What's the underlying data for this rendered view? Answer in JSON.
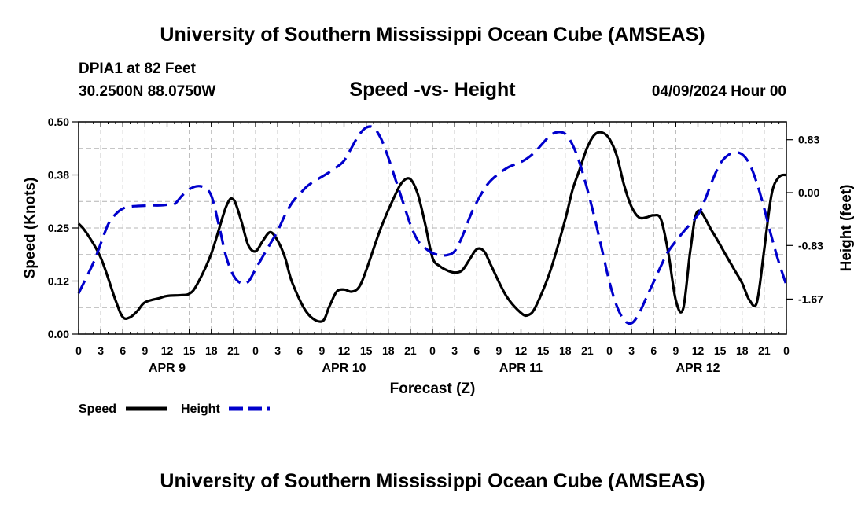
{
  "header": {
    "title": "University of Southern Mississippi Ocean Cube (AMSEAS)",
    "station": "DPIA1 at 82 Feet",
    "coords": "30.2500N  88.0750W",
    "subtitle": "Speed -vs- Height",
    "datestamp": "04/09/2024 Hour 00"
  },
  "footer": {
    "title": "University of Southern Mississippi Ocean Cube (AMSEAS)"
  },
  "colors": {
    "speed": "#000000",
    "height": "#0000cc",
    "grid": "#b4b4b4"
  },
  "chart_data": {
    "type": "line",
    "xlabel": "Forecast (Z)",
    "ylabel_left": "Speed (Knots)",
    "ylabel_right": "Height (feet)",
    "x_unit": "hours since 04/09/2024 00Z",
    "xlim": [
      0,
      96
    ],
    "ylim_left": [
      0,
      0.5
    ],
    "ylim_right": [
      -2.22,
      1.11
    ],
    "yticks_left": [
      {
        "value": 0.0,
        "label": "0.00"
      },
      {
        "value": 0.125,
        "label": "0.12"
      },
      {
        "value": 0.25,
        "label": "0.25"
      },
      {
        "value": 0.375,
        "label": "0.38"
      },
      {
        "value": 0.5,
        "label": "0.50"
      }
    ],
    "yticks_right": [
      {
        "value": -1.67,
        "label": "-1.67"
      },
      {
        "value": -0.83,
        "label": "-0.83"
      },
      {
        "value": 0.0,
        "label": "0.00"
      },
      {
        "value": 0.83,
        "label": "0.83"
      }
    ],
    "xticks": [
      {
        "x": 0,
        "label": "0"
      },
      {
        "x": 3,
        "label": "3"
      },
      {
        "x": 6,
        "label": "6"
      },
      {
        "x": 9,
        "label": "9"
      },
      {
        "x": 12,
        "label": "12"
      },
      {
        "x": 15,
        "label": "15"
      },
      {
        "x": 18,
        "label": "18"
      },
      {
        "x": 21,
        "label": "21"
      },
      {
        "x": 24,
        "label": "0"
      },
      {
        "x": 27,
        "label": "3"
      },
      {
        "x": 30,
        "label": "6"
      },
      {
        "x": 33,
        "label": "9"
      },
      {
        "x": 36,
        "label": "12"
      },
      {
        "x": 39,
        "label": "15"
      },
      {
        "x": 42,
        "label": "18"
      },
      {
        "x": 45,
        "label": "21"
      },
      {
        "x": 48,
        "label": "0"
      },
      {
        "x": 51,
        "label": "3"
      },
      {
        "x": 54,
        "label": "6"
      },
      {
        "x": 57,
        "label": "9"
      },
      {
        "x": 60,
        "label": "12"
      },
      {
        "x": 63,
        "label": "15"
      },
      {
        "x": 66,
        "label": "18"
      },
      {
        "x": 69,
        "label": "21"
      },
      {
        "x": 72,
        "label": "0"
      },
      {
        "x": 75,
        "label": "3"
      },
      {
        "x": 78,
        "label": "6"
      },
      {
        "x": 81,
        "label": "9"
      },
      {
        "x": 84,
        "label": "12"
      },
      {
        "x": 87,
        "label": "15"
      },
      {
        "x": 90,
        "label": "18"
      },
      {
        "x": 93,
        "label": "21"
      },
      {
        "x": 96,
        "label": "0"
      }
    ],
    "date_labels": [
      {
        "x": 12,
        "label": "APR 9"
      },
      {
        "x": 36,
        "label": "APR 10"
      },
      {
        "x": 60,
        "label": "APR 11"
      },
      {
        "x": 84,
        "label": "APR 12"
      }
    ],
    "legend": [
      {
        "label": "Speed",
        "series": "Speed"
      },
      {
        "label": "Height",
        "series": "Height"
      }
    ],
    "series": [
      {
        "name": "Speed",
        "axis": "left",
        "style": "solid",
        "x": [
          0,
          1,
          3,
          5,
          6,
          7,
          8,
          9,
          11,
          12,
          14,
          15,
          16,
          18,
          20,
          21,
          22,
          23,
          24,
          25,
          26,
          27,
          28,
          29,
          31,
          33,
          34,
          35,
          36,
          37,
          38,
          39,
          41,
          43,
          44,
          45,
          46,
          47,
          48,
          49,
          50,
          51,
          52,
          53,
          54,
          55,
          56,
          58,
          60,
          61,
          62,
          64,
          66,
          67,
          68,
          69,
          70,
          71,
          72,
          73,
          74,
          75,
          76,
          77,
          78,
          79,
          80,
          81,
          82,
          83,
          84,
          86,
          88,
          89,
          90,
          91,
          92,
          93,
          94,
          95,
          96
        ],
        "y": [
          0.26,
          0.24,
          0.18,
          0.08,
          0.04,
          0.04,
          0.055,
          0.075,
          0.085,
          0.09,
          0.092,
          0.095,
          0.115,
          0.19,
          0.3,
          0.317,
          0.27,
          0.21,
          0.195,
          0.22,
          0.24,
          0.22,
          0.18,
          0.12,
          0.05,
          0.03,
          0.065,
          0.1,
          0.105,
          0.1,
          0.11,
          0.15,
          0.25,
          0.33,
          0.36,
          0.365,
          0.33,
          0.26,
          0.18,
          0.16,
          0.15,
          0.145,
          0.15,
          0.175,
          0.2,
          0.195,
          0.16,
          0.09,
          0.05,
          0.045,
          0.065,
          0.15,
          0.27,
          0.34,
          0.39,
          0.44,
          0.47,
          0.475,
          0.46,
          0.42,
          0.35,
          0.3,
          0.275,
          0.275,
          0.28,
          0.27,
          0.19,
          0.08,
          0.06,
          0.2,
          0.29,
          0.24,
          0.18,
          0.15,
          0.12,
          0.08,
          0.075,
          0.2,
          0.33,
          0.37,
          0.375
        ]
      },
      {
        "name": "Height",
        "axis": "right",
        "style": "dashed",
        "x": [
          0,
          2,
          3,
          4,
          5,
          6,
          7,
          8,
          10,
          11,
          12,
          13,
          14,
          15,
          16,
          17,
          18,
          19,
          20,
          21,
          22,
          23,
          24,
          25,
          26,
          27,
          28,
          29,
          30,
          31,
          32,
          33,
          34,
          35,
          36,
          37,
          38,
          39,
          40,
          41,
          42,
          43,
          44,
          45,
          46,
          47,
          48,
          49,
          50,
          51,
          52,
          53,
          54,
          55,
          56,
          58,
          60,
          61,
          62,
          63,
          64,
          65,
          66,
          67,
          68,
          69,
          70,
          71,
          72,
          73,
          74,
          75,
          76,
          77,
          78,
          79,
          80,
          82,
          84,
          85,
          86,
          87,
          88,
          89,
          90,
          91,
          92,
          93,
          94,
          95,
          96
        ],
        "y": [
          -1.58,
          -1.1,
          -0.8,
          -0.5,
          -0.34,
          -0.25,
          -0.22,
          -0.21,
          -0.2,
          -0.2,
          -0.19,
          -0.18,
          -0.05,
          0.05,
          0.1,
          0.08,
          -0.05,
          -0.5,
          -1.0,
          -1.3,
          -1.42,
          -1.4,
          -1.2,
          -1.0,
          -0.8,
          -0.6,
          -0.35,
          -0.15,
          -0.02,
          0.1,
          0.18,
          0.25,
          0.32,
          0.4,
          0.5,
          0.7,
          0.9,
          1.02,
          1.02,
          0.85,
          0.55,
          0.2,
          -0.15,
          -0.5,
          -0.75,
          -0.87,
          -0.95,
          -0.98,
          -0.98,
          -0.92,
          -0.7,
          -0.4,
          -0.15,
          0.05,
          0.2,
          0.38,
          0.48,
          0.55,
          0.65,
          0.78,
          0.9,
          0.95,
          0.92,
          0.75,
          0.45,
          0.05,
          -0.4,
          -0.9,
          -1.4,
          -1.78,
          -2.0,
          -2.05,
          -1.9,
          -1.65,
          -1.4,
          -1.15,
          -0.92,
          -0.62,
          -0.35,
          -0.1,
          0.2,
          0.45,
          0.58,
          0.63,
          0.6,
          0.45,
          0.15,
          -0.25,
          -0.7,
          -1.1,
          -1.45
        ]
      }
    ]
  }
}
